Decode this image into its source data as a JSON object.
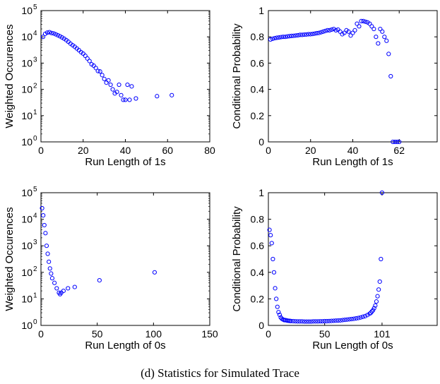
{
  "caption": "(d) Statistics for Simulated Trace",
  "chart_data": [
    {
      "type": "scatter",
      "xlabel": "Run Length of 1s",
      "ylabel": "Weighted Occurences",
      "yscale": "log",
      "xlim": [
        0,
        80
      ],
      "ylim": [
        1,
        100000
      ],
      "xticks": [
        0,
        20,
        40,
        60,
        80
      ],
      "yticks": [
        1,
        10,
        100,
        1000,
        10000,
        100000
      ],
      "marker": "open-circle",
      "color": "#0000ff",
      "series": [
        {
          "x": [
            1,
            2,
            3,
            4,
            5,
            6,
            7,
            8,
            9,
            10,
            11,
            12,
            13,
            14,
            15,
            16,
            17,
            18,
            19,
            20,
            21,
            22,
            23,
            24,
            25,
            26,
            27,
            28,
            29,
            30,
            31,
            32,
            33,
            34,
            35,
            36,
            37,
            38,
            39,
            40,
            41,
            42,
            43,
            45,
            55,
            62
          ],
          "y": [
            10000,
            13000,
            14500,
            15000,
            14000,
            13500,
            12500,
            11500,
            10500,
            9500,
            8500,
            7500,
            6500,
            5500,
            4800,
            4200,
            3600,
            3100,
            2600,
            2300,
            1900,
            1500,
            1200,
            900,
            800,
            650,
            500,
            480,
            350,
            250,
            180,
            220,
            150,
            100,
            70,
            80,
            150,
            60,
            40,
            40,
            150,
            40,
            130,
            45,
            55,
            60
          ]
        }
      ]
    },
    {
      "type": "scatter",
      "xlabel": "Run Length of 1s",
      "ylabel": "Conditional Probability",
      "xlim": [
        0,
        80
      ],
      "ylim": [
        0,
        1
      ],
      "xticks": [
        0,
        20,
        40,
        62
      ],
      "yticks": [
        0,
        0.2,
        0.4,
        0.6,
        0.8,
        1
      ],
      "marker": "open-circle",
      "color": "#0000ff",
      "series": [
        {
          "x": [
            1,
            2,
            3,
            4,
            5,
            6,
            7,
            8,
            9,
            10,
            11,
            12,
            13,
            14,
            15,
            16,
            17,
            18,
            19,
            20,
            21,
            22,
            23,
            24,
            25,
            26,
            27,
            28,
            29,
            30,
            31,
            32,
            33,
            34,
            35,
            36,
            37,
            38,
            39,
            40,
            41,
            42,
            43,
            44,
            45,
            46,
            47,
            48,
            49,
            50,
            51,
            52,
            53,
            54,
            55,
            56,
            57,
            58,
            59,
            60,
            61,
            62
          ],
          "y": [
            0.78,
            0.785,
            0.79,
            0.793,
            0.795,
            0.798,
            0.8,
            0.8,
            0.803,
            0.805,
            0.807,
            0.808,
            0.81,
            0.812,
            0.815,
            0.815,
            0.817,
            0.818,
            0.82,
            0.82,
            0.822,
            0.825,
            0.828,
            0.83,
            0.835,
            0.84,
            0.845,
            0.85,
            0.85,
            0.855,
            0.86,
            0.85,
            0.855,
            0.84,
            0.82,
            0.83,
            0.85,
            0.84,
            0.81,
            0.83,
            0.85,
            0.9,
            0.88,
            0.92,
            0.92,
            0.915,
            0.91,
            0.9,
            0.88,
            0.86,
            0.8,
            0.75,
            0.86,
            0.84,
            0.8,
            0.77,
            0.67,
            0.5,
            0.0,
            0.0,
            0.0,
            0.0
          ]
        }
      ]
    },
    {
      "type": "scatter",
      "xlabel": "Run Length of 0s",
      "ylabel": "Weighted Occurences",
      "yscale": "log",
      "xlim": [
        0,
        150
      ],
      "ylim": [
        1,
        100000
      ],
      "xticks": [
        0,
        50,
        100,
        150
      ],
      "yticks": [
        1,
        10,
        100,
        1000,
        10000,
        100000
      ],
      "marker": "open-circle",
      "color": "#0000ff",
      "series": [
        {
          "x": [
            1,
            2,
            3,
            4,
            5,
            6,
            7,
            8,
            9,
            10,
            12,
            14,
            16,
            17,
            18,
            20,
            24,
            30,
            52,
            101
          ],
          "y": [
            26000,
            14000,
            6000,
            3000,
            1000,
            500,
            250,
            140,
            90,
            60,
            40,
            25,
            17,
            15,
            17,
            20,
            25,
            28,
            50,
            100
          ]
        }
      ]
    },
    {
      "type": "scatter",
      "xlabel": "Run Length of 0s",
      "ylabel": "Conditional Probability",
      "xlim": [
        0,
        150
      ],
      "ylim": [
        0,
        1
      ],
      "xticks": [
        0,
        50,
        101
      ],
      "yticks": [
        0,
        0.2,
        0.4,
        0.6,
        0.8,
        1
      ],
      "marker": "open-circle",
      "color": "#0000ff",
      "series": [
        {
          "x": [
            1,
            2,
            3,
            4,
            5,
            6,
            7,
            8,
            9,
            10,
            11,
            12,
            13,
            14,
            15,
            16,
            17,
            18,
            19,
            20,
            22,
            24,
            26,
            28,
            30,
            32,
            34,
            36,
            38,
            40,
            42,
            44,
            46,
            48,
            50,
            52,
            54,
            56,
            58,
            60,
            62,
            64,
            66,
            68,
            70,
            72,
            74,
            76,
            78,
            80,
            82,
            84,
            86,
            88,
            90,
            91,
            92,
            93,
            94,
            95,
            96,
            97,
            98,
            99,
            100,
            101
          ],
          "y": [
            0.72,
            0.68,
            0.62,
            0.5,
            0.4,
            0.28,
            0.2,
            0.14,
            0.1,
            0.08,
            0.06,
            0.05,
            0.045,
            0.04,
            0.04,
            0.038,
            0.036,
            0.035,
            0.034,
            0.033,
            0.032,
            0.031,
            0.03,
            0.03,
            0.03,
            0.029,
            0.029,
            0.029,
            0.029,
            0.03,
            0.03,
            0.03,
            0.031,
            0.031,
            0.032,
            0.032,
            0.033,
            0.034,
            0.035,
            0.036,
            0.037,
            0.038,
            0.04,
            0.042,
            0.044,
            0.046,
            0.048,
            0.05,
            0.053,
            0.056,
            0.06,
            0.065,
            0.07,
            0.078,
            0.088,
            0.095,
            0.105,
            0.115,
            0.13,
            0.15,
            0.18,
            0.22,
            0.27,
            0.33,
            0.5,
            1.0
          ]
        }
      ]
    }
  ]
}
